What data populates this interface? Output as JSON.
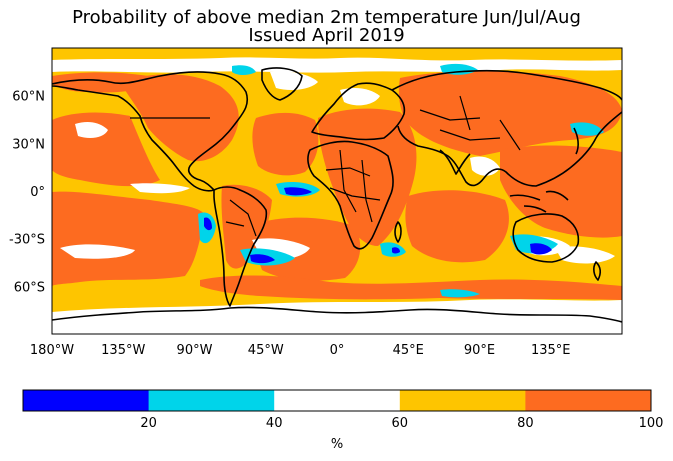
{
  "title": {
    "line1": "Probability of above median 2m temperature Jun/Jul/Aug",
    "line2": "Issued April 2019"
  },
  "map": {
    "projection": "equirectangular",
    "lon_range": [
      -180,
      180
    ],
    "lat_range": [
      -90,
      90
    ],
    "background_class": "60-80",
    "xticks": [
      {
        "lon": -180,
        "label": "180°W"
      },
      {
        "lon": -135,
        "label": "135°W"
      },
      {
        "lon": -90,
        "label": "90°W"
      },
      {
        "lon": -45,
        "label": "45°W"
      },
      {
        "lon": 0,
        "label": "0°"
      },
      {
        "lon": 45,
        "label": "45°E"
      },
      {
        "lon": 90,
        "label": "90°E"
      },
      {
        "lon": 135,
        "label": "135°E"
      }
    ],
    "yticks": [
      {
        "lat": 60,
        "label": "60°N"
      },
      {
        "lat": 30,
        "label": "30°N"
      },
      {
        "lat": 0,
        "label": "0°"
      },
      {
        "lat": -30,
        "label": "-30°S"
      },
      {
        "lat": -60,
        "label": "60°S"
      }
    ]
  },
  "colorbar": {
    "classes": [
      {
        "range": "0-20",
        "color": "#0000ff"
      },
      {
        "range": "20-40",
        "color": "#00d4ea"
      },
      {
        "range": "40-60",
        "color": "#ffffff"
      },
      {
        "range": "60-80",
        "color": "#fec500"
      },
      {
        "range": "80-100",
        "color": "#fd6b20"
      }
    ],
    "tick_labels": [
      "20",
      "40",
      "60",
      "80",
      "100"
    ],
    "unit": "%"
  },
  "colors": {
    "class_0_20": "#0000ff",
    "class_20_40": "#00d4ea",
    "class_40_60": "#ffffff",
    "class_60_80": "#fec500",
    "class_80_100": "#fd6b20",
    "coastline": "#000000"
  }
}
